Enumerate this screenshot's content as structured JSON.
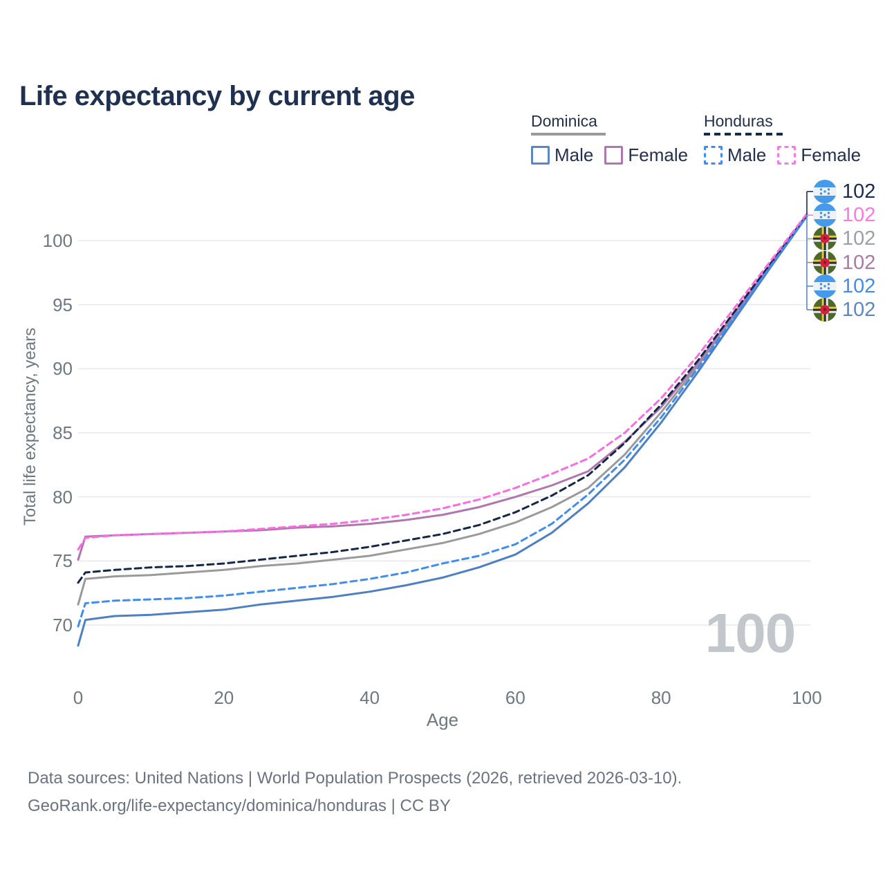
{
  "title": "Life expectancy by current age",
  "watermark": "100",
  "legend": {
    "groups": [
      {
        "country": "Dominica",
        "line_style": "solid",
        "underline_color": "#9a9a9a",
        "items": [
          {
            "label": "Male",
            "color": "#5b87c5",
            "dashed": false
          },
          {
            "label": "Female",
            "color": "#b077ae",
            "dashed": false
          }
        ]
      },
      {
        "country": "Honduras",
        "line_style": "dashed",
        "underline_color": "#16294e",
        "items": [
          {
            "label": "Male",
            "color": "#3f8df0",
            "dashed": true
          },
          {
            "label": "Female",
            "color": "#fb78e8",
            "dashed": true
          }
        ]
      }
    ]
  },
  "footer": {
    "line1": "Data sources: United Nations | World Population Prospects (2026, retrieved 2026-03-10).",
    "line2": "GeoRank.org/life-expectancy/dominica/honduras | CC BY"
  },
  "chart_data": {
    "type": "line",
    "title": "Life expectancy by current age",
    "xlabel": "Age",
    "ylabel": "Total life expectancy, years",
    "xlim": [
      0,
      100
    ],
    "ylim": [
      67.5,
      103
    ],
    "xticks": [
      0,
      20,
      40,
      60,
      80,
      100
    ],
    "yticks": [
      70,
      75,
      80,
      85,
      90,
      95,
      100
    ],
    "grid": "horizontal",
    "legend_position": "top-right",
    "x": [
      0,
      1,
      5,
      10,
      15,
      20,
      25,
      30,
      35,
      40,
      45,
      50,
      55,
      60,
      65,
      70,
      75,
      80,
      85,
      90,
      95,
      100
    ],
    "series": [
      {
        "name": "Honduras both sexes",
        "country": "Honduras",
        "color": "#152747",
        "label_color": "#1b2b4d",
        "dashed": true,
        "end_label": "102",
        "values": [
          73.3,
          74.1,
          74.3,
          74.5,
          74.6,
          74.8,
          75.1,
          75.4,
          75.7,
          76.1,
          76.6,
          77.1,
          77.8,
          78.8,
          80.1,
          81.7,
          84.2,
          87.2,
          90.6,
          94.4,
          98.2,
          102.0
        ]
      },
      {
        "name": "Honduras female",
        "country": "Honduras",
        "color": "#fb6ce2",
        "label_color": "#f87ae2",
        "dashed": true,
        "end_label": "102",
        "values": [
          75.9,
          76.8,
          77.0,
          77.1,
          77.2,
          77.3,
          77.5,
          77.7,
          77.9,
          78.2,
          78.6,
          79.1,
          79.8,
          80.7,
          81.8,
          83.0,
          85.0,
          87.7,
          91.0,
          94.7,
          98.4,
          102.1
        ]
      },
      {
        "name": "Dominica both sexes",
        "country": "Dominica",
        "color": "#9a9a9a",
        "label_color": "#9aa0a8",
        "dashed": false,
        "end_label": "102",
        "values": [
          71.6,
          73.6,
          73.8,
          73.9,
          74.1,
          74.3,
          74.6,
          74.8,
          75.1,
          75.4,
          75.9,
          76.4,
          77.1,
          78.0,
          79.2,
          80.7,
          83.3,
          86.6,
          90.2,
          94.1,
          98.0,
          101.9
        ]
      },
      {
        "name": "Dominica female",
        "country": "Dominica",
        "color": "#b077ae",
        "label_color": "#a77ba5",
        "dashed": false,
        "end_label": "102",
        "values": [
          75.1,
          76.9,
          77.0,
          77.1,
          77.2,
          77.3,
          77.4,
          77.6,
          77.7,
          77.9,
          78.2,
          78.6,
          79.2,
          80.0,
          80.9,
          82.0,
          84.3,
          87.0,
          90.4,
          94.3,
          98.1,
          102.0
        ]
      },
      {
        "name": "Honduras male",
        "country": "Honduras",
        "color": "#3f8df0",
        "label_color": "#418ced",
        "dashed": true,
        "end_label": "102",
        "values": [
          69.9,
          71.7,
          71.9,
          72.0,
          72.1,
          72.3,
          72.6,
          72.9,
          73.2,
          73.6,
          74.1,
          74.8,
          75.4,
          76.3,
          77.9,
          80.2,
          82.9,
          86.2,
          90.0,
          94.0,
          98.0,
          101.9
        ]
      },
      {
        "name": "Dominica male",
        "country": "Dominica",
        "color": "#4d7fc3",
        "label_color": "#5b87c5",
        "dashed": false,
        "end_label": "102",
        "values": [
          68.4,
          70.4,
          70.7,
          70.8,
          71.0,
          71.2,
          71.6,
          71.9,
          72.2,
          72.6,
          73.1,
          73.7,
          74.5,
          75.5,
          77.2,
          79.5,
          82.3,
          85.8,
          89.7,
          93.8,
          97.9,
          101.9
        ]
      }
    ]
  }
}
